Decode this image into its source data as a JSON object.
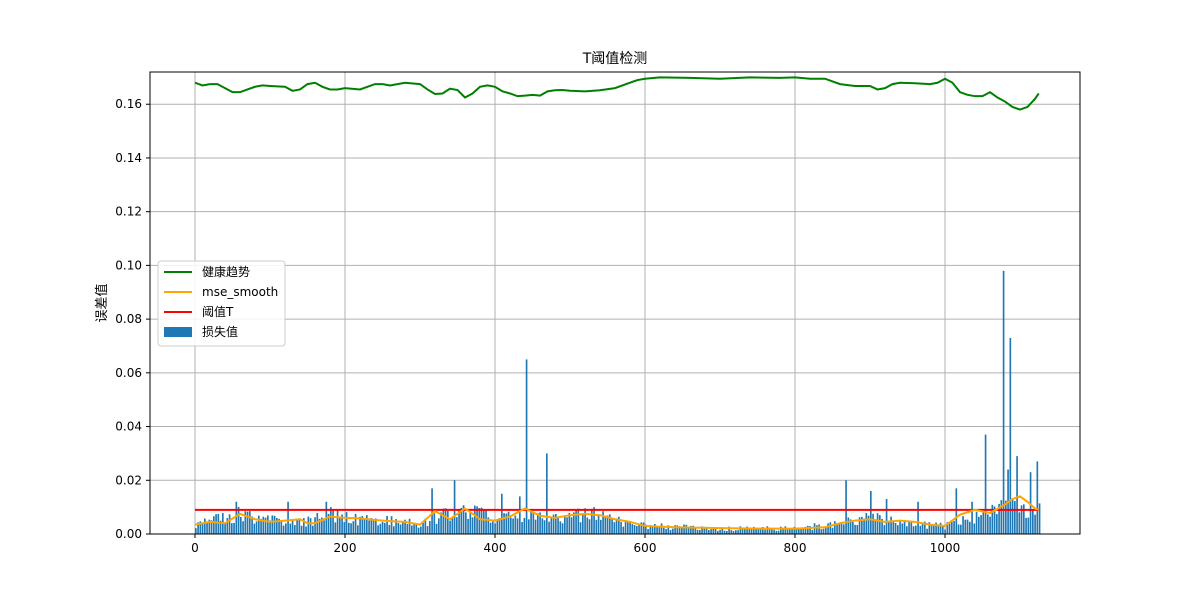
{
  "chart_data": {
    "type": "bar",
    "title": "T阈值检测",
    "xlabel": "",
    "ylabel": "误差值",
    "xlim": [
      -60,
      1180
    ],
    "ylim": [
      0,
      0.172
    ],
    "xticks": [
      0,
      200,
      400,
      600,
      800,
      1000
    ],
    "yticks": [
      0.0,
      0.02,
      0.04,
      0.06,
      0.08,
      0.1,
      0.12,
      0.14,
      0.16
    ],
    "ytick_labels": [
      "0.00",
      "0.02",
      "0.04",
      "0.06",
      "0.08",
      "0.10",
      "0.12",
      "0.14",
      "0.16"
    ],
    "grid": true,
    "legend_position": "center-left",
    "colors": {
      "health": "#008000",
      "smooth": "#ffa500",
      "threshold": "#ff0000",
      "bars": "#1f77b4"
    },
    "legend": [
      {
        "key": "health",
        "label": "健康趋势",
        "kind": "line"
      },
      {
        "key": "smooth",
        "label": "mse_smooth",
        "kind": "line"
      },
      {
        "key": "threshold",
        "label": "阈值T",
        "kind": "line"
      },
      {
        "key": "bars",
        "label": "损失值",
        "kind": "patch"
      }
    ],
    "threshold": 0.009,
    "bar_width": 3,
    "bar_profile": [
      [
        0,
        0.004
      ],
      [
        50,
        0.006
      ],
      [
        60,
        0.009
      ],
      [
        80,
        0.005
      ],
      [
        120,
        0.005
      ],
      [
        140,
        0.004
      ],
      [
        180,
        0.007
      ],
      [
        240,
        0.005
      ],
      [
        300,
        0.004
      ],
      [
        330,
        0.007
      ],
      [
        360,
        0.009
      ],
      [
        400,
        0.005
      ],
      [
        430,
        0.008
      ],
      [
        460,
        0.006
      ],
      [
        520,
        0.007
      ],
      [
        560,
        0.005
      ],
      [
        600,
        0.003
      ],
      [
        700,
        0.002
      ],
      [
        800,
        0.002
      ],
      [
        860,
        0.004
      ],
      [
        900,
        0.006
      ],
      [
        950,
        0.004
      ],
      [
        1000,
        0.003
      ],
      [
        1040,
        0.006
      ],
      [
        1080,
        0.01
      ],
      [
        1100,
        0.009
      ],
      [
        1125,
        0.008
      ]
    ],
    "bar_spikes": [
      [
        55,
        0.012
      ],
      [
        125,
        0.012
      ],
      [
        175,
        0.012
      ],
      [
        315,
        0.017
      ],
      [
        345,
        0.02
      ],
      [
        410,
        0.015
      ],
      [
        432,
        0.014
      ],
      [
        442,
        0.065
      ],
      [
        470,
        0.03
      ],
      [
        533,
        0.01
      ],
      [
        868,
        0.02
      ],
      [
        900,
        0.016
      ],
      [
        922,
        0.013
      ],
      [
        965,
        0.012
      ],
      [
        1015,
        0.017
      ],
      [
        1035,
        0.012
      ],
      [
        1055,
        0.037
      ],
      [
        1078,
        0.098
      ],
      [
        1085,
        0.024
      ],
      [
        1088,
        0.073
      ],
      [
        1095,
        0.029
      ],
      [
        1115,
        0.023
      ],
      [
        1123,
        0.027
      ]
    ],
    "health_trend": {
      "x": [
        0,
        10,
        20,
        30,
        40,
        50,
        60,
        70,
        80,
        90,
        100,
        120,
        130,
        140,
        150,
        160,
        170,
        180,
        190,
        200,
        220,
        240,
        250,
        260,
        280,
        300,
        310,
        320,
        330,
        340,
        350,
        360,
        370,
        380,
        390,
        400,
        410,
        420,
        430,
        440,
        450,
        460,
        470,
        480,
        490,
        500,
        520,
        540,
        560,
        580,
        590,
        600,
        620,
        660,
        700,
        740,
        780,
        800,
        820,
        840,
        860,
        880,
        900,
        910,
        920,
        930,
        940,
        960,
        980,
        990,
        1000,
        1010,
        1020,
        1030,
        1040,
        1050,
        1060,
        1070,
        1080,
        1090,
        1100,
        1110,
        1120,
        1125
      ],
      "y": [
        0.168,
        0.167,
        0.1675,
        0.1675,
        0.166,
        0.1645,
        0.1645,
        0.1655,
        0.1665,
        0.167,
        0.1668,
        0.1665,
        0.165,
        0.1655,
        0.1675,
        0.168,
        0.1665,
        0.1655,
        0.1655,
        0.166,
        0.1655,
        0.1675,
        0.1675,
        0.167,
        0.168,
        0.1675,
        0.1655,
        0.1638,
        0.164,
        0.1658,
        0.1653,
        0.1625,
        0.164,
        0.1665,
        0.167,
        0.1665,
        0.1648,
        0.164,
        0.163,
        0.1632,
        0.1635,
        0.1632,
        0.1648,
        0.1652,
        0.1653,
        0.165,
        0.1648,
        0.1652,
        0.166,
        0.168,
        0.169,
        0.1695,
        0.17,
        0.1698,
        0.1695,
        0.17,
        0.1698,
        0.17,
        0.1695,
        0.1695,
        0.1675,
        0.1668,
        0.1668,
        0.1655,
        0.166,
        0.1675,
        0.168,
        0.1678,
        0.1675,
        0.168,
        0.1695,
        0.168,
        0.1645,
        0.1635,
        0.163,
        0.163,
        0.1645,
        0.1625,
        0.161,
        0.159,
        0.158,
        0.159,
        0.162,
        0.164
      ]
    },
    "mse_smooth": {
      "x": [
        0,
        20,
        40,
        60,
        80,
        100,
        120,
        140,
        150,
        160,
        180,
        200,
        220,
        240,
        260,
        280,
        300,
        320,
        340,
        360,
        380,
        400,
        420,
        440,
        460,
        480,
        500,
        520,
        540,
        560,
        580,
        600,
        640,
        700,
        760,
        800,
        840,
        860,
        880,
        900,
        920,
        940,
        960,
        980,
        1000,
        1020,
        1040,
        1060,
        1080,
        1090,
        1100,
        1110,
        1120,
        1125
      ],
      "y": [
        0.0035,
        0.0045,
        0.004,
        0.0075,
        0.0055,
        0.0045,
        0.005,
        0.0055,
        0.004,
        0.004,
        0.0065,
        0.006,
        0.0058,
        0.0052,
        0.0048,
        0.0045,
        0.0035,
        0.0085,
        0.0055,
        0.0095,
        0.0055,
        0.005,
        0.0065,
        0.0095,
        0.0068,
        0.006,
        0.007,
        0.0075,
        0.007,
        0.0055,
        0.0045,
        0.003,
        0.0025,
        0.0022,
        0.002,
        0.002,
        0.0025,
        0.004,
        0.005,
        0.0055,
        0.0045,
        0.005,
        0.0045,
        0.0035,
        0.003,
        0.0072,
        0.009,
        0.0078,
        0.011,
        0.013,
        0.014,
        0.012,
        0.0095,
        0.009
      ]
    }
  }
}
